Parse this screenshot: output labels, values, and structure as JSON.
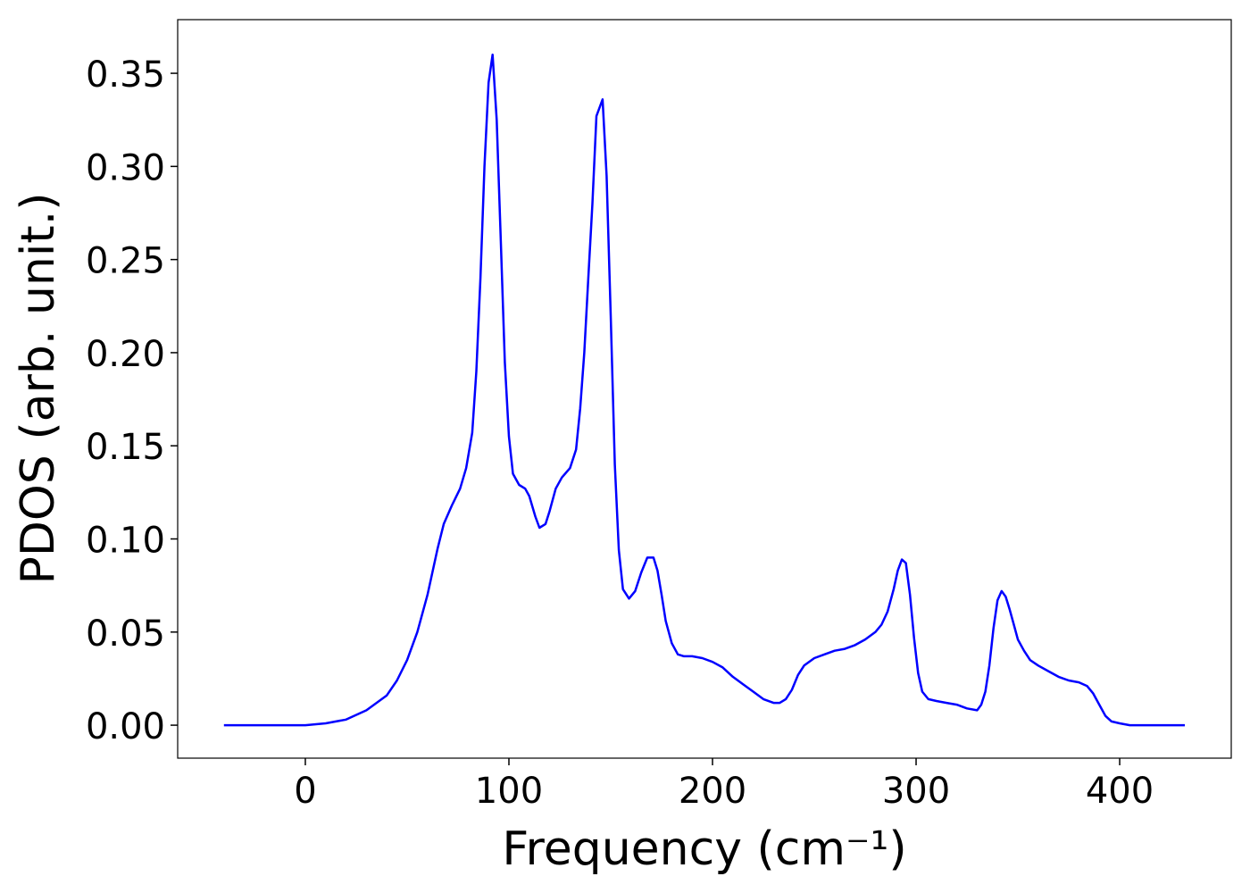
{
  "chart_data": {
    "type": "line",
    "xlabel": "Frequency (cm⁻¹)",
    "ylabel": "PDOS (arb. unit.)",
    "color": "#0000ff",
    "xlim": [
      -62.7,
      454.8
    ],
    "ylim": [
      -0.0177,
      0.3788
    ],
    "xticks": [
      0,
      100,
      200,
      300,
      400
    ],
    "yticks": [
      {
        "value": 0,
        "label": "0.00"
      },
      0.05,
      {
        "value": 0.1,
        "label": "0.10"
      },
      0.15,
      {
        "value": 0.2,
        "label": "0.20"
      },
      0.25,
      {
        "value": 0.3,
        "label": "0.30"
      },
      0.35
    ],
    "x": [
      -40,
      0,
      10,
      20,
      30,
      40,
      45,
      50,
      55,
      60,
      65,
      68,
      72,
      76,
      79,
      82,
      84,
      86,
      88,
      90,
      92,
      94,
      96,
      98,
      100,
      102,
      105,
      108,
      110,
      113,
      115,
      118,
      120,
      123,
      126,
      130,
      133,
      135,
      137,
      139,
      141,
      143,
      146,
      148,
      150,
      152,
      154,
      156,
      159,
      162,
      165,
      168,
      171,
      173,
      175,
      177,
      180,
      183,
      186,
      190,
      195,
      200,
      205,
      210,
      215,
      220,
      225,
      230,
      233,
      236,
      239,
      242,
      245,
      250,
      255,
      260,
      265,
      270,
      275,
      280,
      283,
      286,
      289,
      291,
      293,
      295,
      297,
      299,
      301,
      303,
      306,
      310,
      315,
      320,
      325,
      330,
      332,
      334,
      336,
      338,
      340,
      342,
      344,
      346,
      348,
      350,
      353,
      356,
      360,
      365,
      370,
      375,
      380,
      384,
      387,
      390,
      393,
      396,
      400,
      405,
      432
    ],
    "values": [
      0,
      0,
      0.001,
      0.003,
      0.008,
      0.016,
      0.024,
      0.035,
      0.05,
      0.07,
      0.095,
      0.108,
      0.118,
      0.127,
      0.138,
      0.157,
      0.19,
      0.24,
      0.3,
      0.345,
      0.36,
      0.325,
      0.26,
      0.195,
      0.155,
      0.135,
      0.129,
      0.127,
      0.123,
      0.112,
      0.106,
      0.108,
      0.115,
      0.127,
      0.133,
      0.138,
      0.148,
      0.17,
      0.2,
      0.24,
      0.28,
      0.327,
      0.336,
      0.295,
      0.22,
      0.14,
      0.094,
      0.073,
      0.068,
      0.072,
      0.082,
      0.09,
      0.09,
      0.083,
      0.07,
      0.056,
      0.044,
      0.038,
      0.037,
      0.037,
      0.036,
      0.034,
      0.031,
      0.026,
      0.022,
      0.018,
      0.014,
      0.012,
      0.012,
      0.014,
      0.019,
      0.027,
      0.032,
      0.036,
      0.038,
      0.04,
      0.041,
      0.043,
      0.046,
      0.05,
      0.054,
      0.061,
      0.073,
      0.083,
      0.089,
      0.087,
      0.07,
      0.047,
      0.028,
      0.018,
      0.014,
      0.013,
      0.012,
      0.011,
      0.009,
      0.008,
      0.011,
      0.018,
      0.032,
      0.052,
      0.067,
      0.072,
      0.069,
      0.062,
      0.054,
      0.046,
      0.04,
      0.035,
      0.032,
      0.029,
      0.026,
      0.024,
      0.023,
      0.021,
      0.017,
      0.011,
      0.005,
      0.002,
      0.001,
      0,
      0
    ]
  }
}
